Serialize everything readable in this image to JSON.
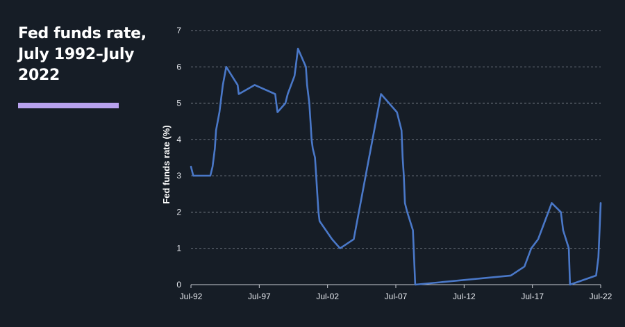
{
  "colors": {
    "background": "#161d26",
    "line": "#4a78c8",
    "accent": "#b8a2ee",
    "grid": "#8a919b",
    "axis": "#c8ccd2"
  },
  "chart_data": {
    "type": "line",
    "title": "Fed funds rate, July 1992–July 2022",
    "xlabel": "",
    "ylabel": "Fed funds rate (%)",
    "ylim": [
      0,
      7
    ],
    "yticks": [
      0,
      1,
      2,
      3,
      4,
      5,
      6,
      7
    ],
    "xlim": [
      "1992-07",
      "2022-07"
    ],
    "xticks": [
      {
        "x": "1992-07",
        "label": "Jul-92"
      },
      {
        "x": "1997-07",
        "label": "Jul-97"
      },
      {
        "x": "2002-07",
        "label": "Jul-02"
      },
      {
        "x": "2007-07",
        "label": "Jul-07"
      },
      {
        "x": "2012-07",
        "label": "Jul-12"
      },
      {
        "x": "2017-07",
        "label": "Jul-17"
      },
      {
        "x": "2022-07",
        "label": "Jul-22"
      }
    ],
    "grid": "horizontal dashed",
    "series": [
      {
        "points": [
          [
            "1992-07",
            3.25
          ],
          [
            "1992-09",
            3.0
          ],
          [
            "1993-12",
            3.0
          ],
          [
            "1994-02",
            3.25
          ],
          [
            "1994-04",
            3.75
          ],
          [
            "1994-05",
            4.25
          ],
          [
            "1994-08",
            4.75
          ],
          [
            "1994-11",
            5.5
          ],
          [
            "1995-02",
            6.0
          ],
          [
            "1995-07",
            5.75
          ],
          [
            "1995-12",
            5.5
          ],
          [
            "1996-01",
            5.25
          ],
          [
            "1997-03",
            5.5
          ],
          [
            "1998-09",
            5.25
          ],
          [
            "1998-10",
            5.0
          ],
          [
            "1998-11",
            4.75
          ],
          [
            "1999-06",
            5.0
          ],
          [
            "1999-08",
            5.25
          ],
          [
            "1999-11",
            5.5
          ],
          [
            "2000-02",
            5.75
          ],
          [
            "2000-03",
            6.0
          ],
          [
            "2000-05",
            6.5
          ],
          [
            "2000-12",
            6.0
          ],
          [
            "2001-01",
            5.5
          ],
          [
            "2001-03",
            5.0
          ],
          [
            "2001-04",
            4.5
          ],
          [
            "2001-05",
            4.0
          ],
          [
            "2001-06",
            3.75
          ],
          [
            "2001-08",
            3.5
          ],
          [
            "2001-09",
            3.0
          ],
          [
            "2001-10",
            2.5
          ],
          [
            "2001-11",
            2.0
          ],
          [
            "2001-12",
            1.75
          ],
          [
            "2002-11",
            1.25
          ],
          [
            "2003-06",
            1.0
          ],
          [
            "2004-06",
            1.25
          ],
          [
            "2004-12",
            2.25
          ],
          [
            "2005-06",
            3.25
          ],
          [
            "2005-12",
            4.25
          ],
          [
            "2006-06",
            5.25
          ],
          [
            "2007-08",
            4.75
          ],
          [
            "2007-10",
            4.5
          ],
          [
            "2007-12",
            4.25
          ],
          [
            "2008-01",
            3.5
          ],
          [
            "2008-02",
            3.0
          ],
          [
            "2008-03",
            2.25
          ],
          [
            "2008-05",
            2.0
          ],
          [
            "2008-10",
            1.5
          ],
          [
            "2008-12",
            0.0
          ],
          [
            "2015-12",
            0.25
          ],
          [
            "2016-12",
            0.5
          ],
          [
            "2017-03",
            0.75
          ],
          [
            "2017-06",
            1.0
          ],
          [
            "2017-12",
            1.25
          ],
          [
            "2018-03",
            1.5
          ],
          [
            "2018-06",
            1.75
          ],
          [
            "2018-09",
            2.0
          ],
          [
            "2018-12",
            2.25
          ],
          [
            "2019-08",
            2.0
          ],
          [
            "2019-09",
            1.75
          ],
          [
            "2019-10",
            1.5
          ],
          [
            "2020-03",
            1.0
          ],
          [
            "2020-04",
            0.0
          ],
          [
            "2022-03",
            0.25
          ],
          [
            "2022-05",
            0.75
          ],
          [
            "2022-06",
            1.5
          ],
          [
            "2022-07",
            2.25
          ]
        ]
      }
    ]
  }
}
